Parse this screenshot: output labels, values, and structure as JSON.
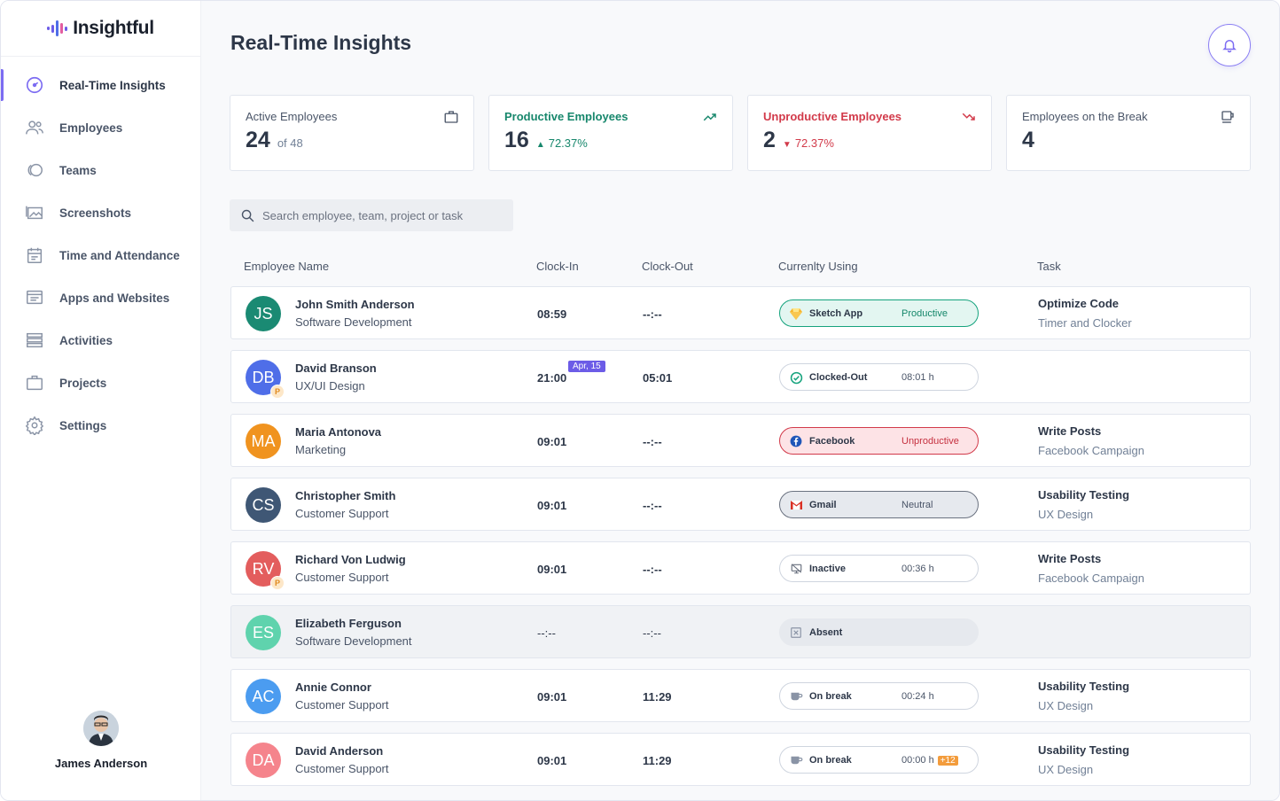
{
  "app": {
    "name": "Insightful"
  },
  "sidebar": {
    "items": [
      {
        "label": "Real-Time Insights",
        "icon": "speedometer-icon",
        "active": true
      },
      {
        "label": "Employees",
        "icon": "users-icon"
      },
      {
        "label": "Teams",
        "icon": "teams-icon"
      },
      {
        "label": "Screenshots",
        "icon": "images-icon"
      },
      {
        "label": "Time and Attendance",
        "icon": "calendar-icon"
      },
      {
        "label": "Apps and Websites",
        "icon": "browser-icon"
      },
      {
        "label": "Activities",
        "icon": "list-icon"
      },
      {
        "label": "Projects",
        "icon": "briefcase-icon"
      },
      {
        "label": "Settings",
        "icon": "gear-icon"
      }
    ],
    "user": {
      "name": "James Anderson"
    }
  },
  "header": {
    "title": "Real-Time Insights"
  },
  "stats": [
    {
      "label": "Active Employees",
      "value": "24",
      "sub": "of 48",
      "icon": "briefcase-icon"
    },
    {
      "label": "Productive Employees",
      "value": "16",
      "sub": "72.37%",
      "trend": "up",
      "icon": "trend-up-icon"
    },
    {
      "label": "Unproductive Employees",
      "value": "2",
      "sub": "72.37%",
      "trend": "down",
      "icon": "trend-down-icon"
    },
    {
      "label": "Employees on the Break",
      "value": "4",
      "sub": "",
      "icon": "coffee-icon"
    }
  ],
  "search": {
    "placeholder": "Search employee, team, project or task"
  },
  "table": {
    "headers": {
      "name": "Employee Name",
      "clock_in": "Clock-In",
      "clock_out": "Clock-Out",
      "using": "Currenlty Using",
      "task": "Task"
    },
    "rows": [
      {
        "initials": "JS",
        "color": "#1a8a73",
        "name": "John Smith Anderson",
        "team": "Software Development",
        "clock_in": "08:59",
        "clock_out": "--:--",
        "date_tag": "",
        "p_badge": "",
        "pill": {
          "type": "productive",
          "icon": "sketch-icon",
          "app": "Sketch App",
          "status": "Productive"
        },
        "task": "Optimize Code",
        "project": "Timer and Clocker"
      },
      {
        "initials": "DB",
        "color": "#4f6ee8",
        "name": "David Branson",
        "team": "UX/UI Design",
        "clock_in": "21:00",
        "clock_out": "05:01",
        "date_tag": "Apr, 15",
        "p_badge": "P",
        "pill": {
          "type": "plain",
          "icon": "check-circle-icon",
          "app": "Clocked-Out",
          "status": "08:01 h"
        },
        "task": "",
        "project": ""
      },
      {
        "initials": "MA",
        "color": "#f0931f",
        "name": "Maria Antonova",
        "team": "Marketing",
        "clock_in": "09:01",
        "clock_out": "--:--",
        "date_tag": "",
        "p_badge": "",
        "pill": {
          "type": "unproductive",
          "icon": "facebook-icon",
          "app": "Facebook",
          "status": "Unproductive"
        },
        "task": "Write Posts",
        "project": "Facebook Campaign"
      },
      {
        "initials": "CS",
        "color": "#3f5775",
        "name": "Christopher Smith",
        "team": "Customer Support",
        "clock_in": "09:01",
        "clock_out": "--:--",
        "date_tag": "",
        "p_badge": "",
        "pill": {
          "type": "neutral",
          "icon": "gmail-icon",
          "app": "Gmail",
          "status": "Neutral"
        },
        "task": "Usability Testing",
        "project": "UX Design"
      },
      {
        "initials": "RV",
        "color": "#e35d5d",
        "name": "Richard Von Ludwig",
        "team": "Customer Support",
        "clock_in": "09:01",
        "clock_out": "--:--",
        "date_tag": "",
        "p_badge": "P",
        "pill": {
          "type": "plain",
          "icon": "inactive-monitor-icon",
          "app": "Inactive",
          "status": "00:36 h"
        },
        "task": "Write Posts",
        "project": "Facebook Campaign"
      },
      {
        "initials": "ES",
        "color": "#5fd3ad",
        "name": "Elizabeth Ferguson",
        "team": "Software Development",
        "clock_in": "--:--",
        "clock_out": "--:--",
        "date_tag": "",
        "p_badge": "",
        "absent": true,
        "pill": {
          "type": "grey",
          "icon": "absent-icon",
          "app": "Absent",
          "status": ""
        },
        "task": "",
        "project": ""
      },
      {
        "initials": "AC",
        "color": "#4b9cf0",
        "name": "Annie Connor",
        "team": "Customer Support",
        "clock_in": "09:01",
        "clock_out": "11:29",
        "date_tag": "",
        "p_badge": "",
        "pill": {
          "type": "plain",
          "icon": "coffee-cup-icon",
          "app": "On break",
          "status": "00:24 h"
        },
        "task": "Usability Testing",
        "project": "UX Design"
      },
      {
        "initials": "DA",
        "color": "#f5848c",
        "name": "David Anderson",
        "team": "Customer Support",
        "clock_in": "09:01",
        "clock_out": "11:29",
        "date_tag": "",
        "p_badge": "",
        "pill": {
          "type": "plain",
          "icon": "coffee-cup-icon",
          "app": "On break",
          "status": "00:00 h",
          "extra": "+12"
        },
        "task": "Usability Testing",
        "project": "UX Design"
      }
    ]
  },
  "colors": {
    "accent": "#7c6cf2",
    "productive": "#15a37d",
    "unproductive": "#d23a4a"
  }
}
